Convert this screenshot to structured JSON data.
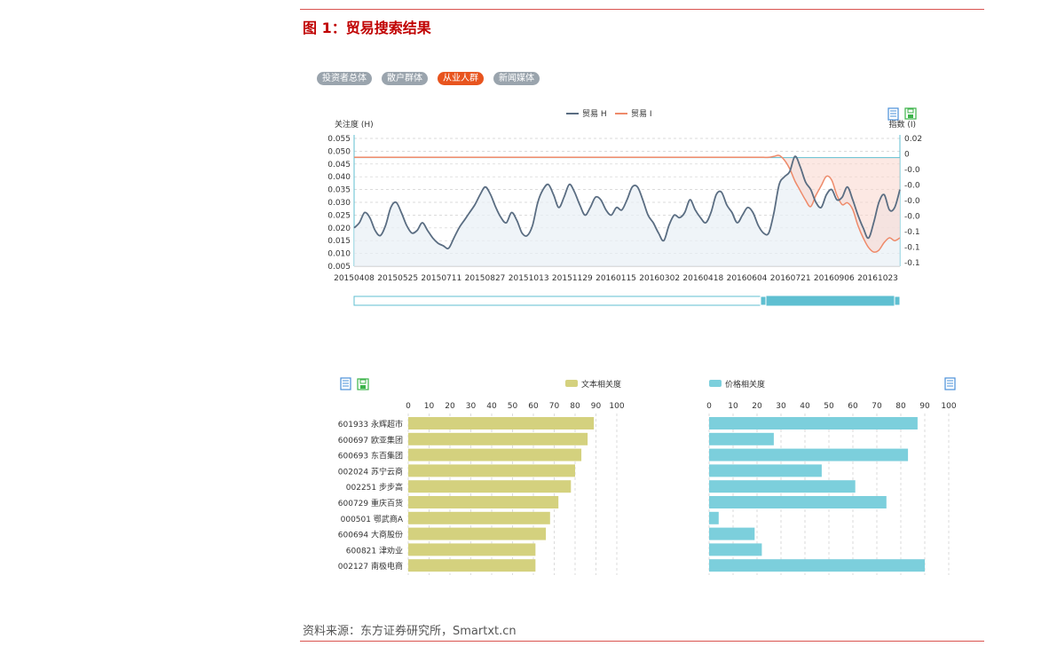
{
  "figure": {
    "title": "图 1：贸易搜索结果",
    "source": "资料来源：东方证券研究所，Smartxt.cn"
  },
  "tabs": [
    {
      "label": "投资者总体",
      "active": false
    },
    {
      "label": "散户群体",
      "active": false
    },
    {
      "label": "从业人群",
      "active": true
    },
    {
      "label": "新闻媒体",
      "active": false
    }
  ],
  "icons": [
    "document-icon",
    "save-icon"
  ],
  "colors": {
    "accent_red": "#c00000",
    "tab_active": "#e8541e",
    "tab_inactive": "#9aa4ad",
    "series_h": "#5a6d82",
    "series_i": "#ee8a6a",
    "bar_text": "#d4d17e",
    "bar_price": "#7ccfdc",
    "slider": "#5fbfd1"
  },
  "chart_data": [
    {
      "type": "line",
      "legend": [
        "贸易 H",
        "贸易 I"
      ],
      "legend_position": "top-center",
      "ylabel_left": "关注度 (H)",
      "ylabel_right": "指数 (I)",
      "y_ticks_left": [
        "0.055",
        "0.050",
        "0.045",
        "0.040",
        "0.035",
        "0.030",
        "0.025",
        "0.020",
        "0.015",
        "0.010",
        "0.005"
      ],
      "y_ticks_right": [
        "0.02",
        "0",
        "-0.0",
        "-0.0",
        "-0.0",
        "-0.0",
        "-0.1",
        "-0.1",
        "-0.1"
      ],
      "x_ticks": [
        "20150408",
        "20150525",
        "20150711",
        "20150827",
        "20151013",
        "20151129",
        "20160115",
        "20160302",
        "20160418",
        "20160604",
        "20160721",
        "20160906",
        "20161023"
      ],
      "ylim_left": [
        0.005,
        0.055
      ],
      "ylim_right": [
        -0.115,
        0.02
      ],
      "grid": true,
      "series": [
        {
          "name": "贸易 H",
          "axis": "left",
          "values": [
            0.02,
            0.022,
            0.026,
            0.024,
            0.019,
            0.017,
            0.021,
            0.028,
            0.03,
            0.026,
            0.021,
            0.018,
            0.019,
            0.022,
            0.019,
            0.016,
            0.014,
            0.013,
            0.012,
            0.016,
            0.02,
            0.023,
            0.026,
            0.029,
            0.033,
            0.036,
            0.033,
            0.028,
            0.024,
            0.022,
            0.026,
            0.023,
            0.018,
            0.017,
            0.021,
            0.03,
            0.035,
            0.037,
            0.033,
            0.028,
            0.032,
            0.037,
            0.034,
            0.029,
            0.025,
            0.028,
            0.032,
            0.031,
            0.027,
            0.025,
            0.028,
            0.027,
            0.031,
            0.036,
            0.036,
            0.031,
            0.025,
            0.022,
            0.018,
            0.015,
            0.021,
            0.025,
            0.024,
            0.026,
            0.031,
            0.027,
            0.024,
            0.022,
            0.026,
            0.033,
            0.034,
            0.029,
            0.026,
            0.022,
            0.025,
            0.028,
            0.026,
            0.021,
            0.018,
            0.018,
            0.026,
            0.037,
            0.04,
            0.042,
            0.048,
            0.044,
            0.038,
            0.035,
            0.03,
            0.028,
            0.033,
            0.035,
            0.031,
            0.032,
            0.036,
            0.031,
            0.025,
            0.02,
            0.016,
            0.022,
            0.03,
            0.033,
            0.027,
            0.028,
            0.035
          ]
        },
        {
          "name": "贸易 I",
          "axis": "right",
          "values": [
            0,
            0,
            0,
            0,
            0,
            0,
            0,
            0,
            0,
            0,
            0,
            0,
            0,
            0,
            0,
            0,
            0,
            0,
            0,
            0,
            0,
            0,
            0,
            0,
            0,
            0,
            0,
            0,
            0,
            0,
            0,
            0,
            0,
            0,
            0,
            0,
            0,
            0,
            0,
            0,
            0,
            0,
            0,
            0,
            0,
            0,
            0,
            0,
            0,
            0,
            0,
            0,
            0,
            0,
            0,
            0,
            0,
            0,
            0,
            0,
            0,
            0,
            0,
            0,
            0,
            0,
            0,
            0,
            0,
            0,
            0,
            0,
            0,
            0,
            0,
            0,
            0,
            0,
            0,
            0,
            0.001,
            0.002,
            -0.003,
            -0.012,
            -0.025,
            -0.035,
            -0.045,
            -0.052,
            -0.04,
            -0.03,
            -0.02,
            -0.024,
            -0.04,
            -0.05,
            -0.048,
            -0.055,
            -0.072,
            -0.085,
            -0.095,
            -0.1,
            -0.098,
            -0.09,
            -0.085,
            -0.088,
            -0.085
          ]
        }
      ]
    },
    {
      "type": "bar",
      "orientation": "horizontal",
      "legend": [
        "文本相关度"
      ],
      "categories": [
        "601933 永辉超市",
        "600697 欧亚集团",
        "600693 东百集团",
        "002024 苏宁云商",
        "002251 步步高",
        "600729 重庆百货",
        "000501 鄂武商A",
        "600694 大商股份",
        "600821 津劝业",
        "002127 南极电商"
      ],
      "x_ticks": [
        "0",
        "10",
        "20",
        "30",
        "40",
        "50",
        "60",
        "70",
        "80",
        "90",
        "100"
      ],
      "xlim": [
        0,
        100
      ],
      "values": [
        89,
        86,
        83,
        80,
        78,
        72,
        68,
        66,
        61,
        61
      ]
    },
    {
      "type": "bar",
      "orientation": "horizontal",
      "legend": [
        "价格相关度"
      ],
      "categories": [
        "601933 永辉超市",
        "600697 欧亚集团",
        "600693 东百集团",
        "002024 苏宁云商",
        "002251 步步高",
        "600729 重庆百货",
        "000501 鄂武商A",
        "600694 大商股份",
        "600821 津劝业",
        "002127 南极电商"
      ],
      "x_ticks": [
        "0",
        "10",
        "20",
        "30",
        "40",
        "50",
        "60",
        "70",
        "80",
        "90",
        "100"
      ],
      "xlim": [
        0,
        100
      ],
      "values": [
        87,
        27,
        83,
        47,
        61,
        74,
        4,
        19,
        22,
        90
      ]
    }
  ]
}
